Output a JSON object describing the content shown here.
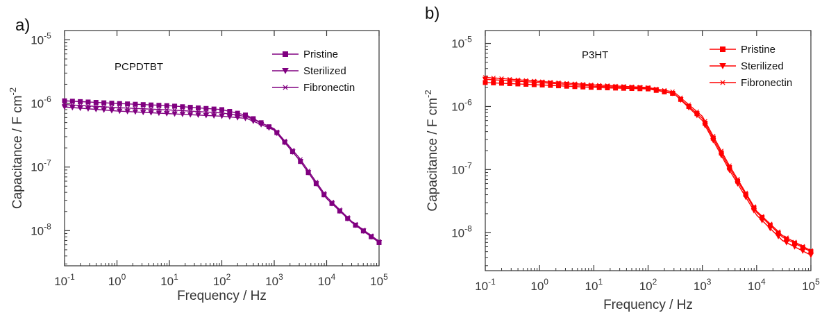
{
  "figure": {
    "panels": [
      "a)",
      "b)"
    ]
  },
  "chart_data": [
    {
      "type": "line",
      "panel_label": "a)",
      "title": "PCPDTBT",
      "xlabel": "Frequency / Hz",
      "ylabel": "Capacitance / F cm⁻²",
      "xscale": "log",
      "yscale": "log",
      "xlim": [
        0.1,
        100000
      ],
      "ylim": [
        2.8e-09,
        1.4e-05
      ],
      "xticks": [
        {
          "base": "10",
          "exp": "-1"
        },
        {
          "base": "10",
          "exp": "0"
        },
        {
          "base": "10",
          "exp": "1"
        },
        {
          "base": "10",
          "exp": "2"
        },
        {
          "base": "10",
          "exp": "3"
        },
        {
          "base": "10",
          "exp": "4"
        },
        {
          "base": "10",
          "exp": "5"
        }
      ],
      "yticks": [
        {
          "base": "10",
          "exp": "-8"
        },
        {
          "base": "10",
          "exp": "-7"
        },
        {
          "base": "10",
          "exp": "-6"
        },
        {
          "base": "10",
          "exp": "-5"
        }
      ],
      "color": "#800080",
      "grid": false,
      "legend_position": "top-right",
      "series": [
        {
          "name": "Pristine",
          "marker": "square",
          "x": [
            0.1,
            1,
            10,
            100,
            300,
            1000,
            3000,
            10000,
            30000,
            100000
          ],
          "y": [
            1.1e-06,
            1e-06,
            9.2e-07,
            8e-07,
            6.5e-07,
            3.9e-07,
            1.3e-07,
            3.2e-08,
            1.35e-08,
            6.5e-09
          ]
        },
        {
          "name": "Sterilized",
          "marker": "triangle-down",
          "x": [
            0.1,
            1,
            10,
            100,
            300,
            1000,
            3000,
            10000,
            30000,
            100000
          ],
          "y": [
            8.8e-07,
            7.6e-07,
            6.9e-07,
            6.3e-07,
            5.8e-07,
            3.8e-07,
            1.3e-07,
            3.2e-08,
            1.35e-08,
            6.5e-09
          ]
        },
        {
          "name": "Fibronectin",
          "marker": "star",
          "x": [
            0.1,
            1,
            10,
            100,
            300,
            1000,
            3000,
            10000,
            30000,
            100000
          ],
          "y": [
            9.6e-07,
            8.6e-07,
            7.9e-07,
            7.1e-07,
            6.2e-07,
            4e-07,
            1.4e-07,
            3.4e-08,
            1.4e-08,
            6.8e-09
          ]
        }
      ]
    },
    {
      "type": "line",
      "panel_label": "b)",
      "title": "P3HT",
      "xlabel": "Frequency / Hz",
      "ylabel": "Capacitance / F cm⁻²",
      "xscale": "log",
      "yscale": "log",
      "xlim": [
        0.1,
        100000
      ],
      "ylim": [
        2.5e-09,
        1.6e-05
      ],
      "xticks": [
        {
          "base": "10",
          "exp": "-1"
        },
        {
          "base": "10",
          "exp": "0"
        },
        {
          "base": "10",
          "exp": "1"
        },
        {
          "base": "10",
          "exp": "2"
        },
        {
          "base": "10",
          "exp": "3"
        },
        {
          "base": "10",
          "exp": "4"
        },
        {
          "base": "10",
          "exp": "5"
        }
      ],
      "yticks": [
        {
          "base": "10",
          "exp": "-8"
        },
        {
          "base": "10",
          "exp": "-7"
        },
        {
          "base": "10",
          "exp": "-6"
        },
        {
          "base": "10",
          "exp": "-5"
        }
      ],
      "color": "#ff0000",
      "grid": false,
      "legend_position": "top-right",
      "series": [
        {
          "name": "Pristine",
          "marker": "square",
          "x": [
            0.1,
            1,
            10,
            100,
            300,
            1000,
            3000,
            10000,
            30000,
            100000
          ],
          "y": [
            2.4e-06,
            2.2e-06,
            2e-06,
            1.9e-06,
            1.6e-06,
            6.5e-07,
            1.15e-07,
            2.1e-08,
            8.5e-09,
            5e-09
          ]
        },
        {
          "name": "Sterilized",
          "marker": "triangle-down",
          "x": [
            0.1,
            1,
            10,
            100,
            300,
            1000,
            3000,
            10000,
            30000,
            100000
          ],
          "y": [
            2.7e-06,
            2.4e-06,
            2.1e-06,
            1.95e-06,
            1.6e-06,
            6e-07,
            1.05e-07,
            1.9e-08,
            7.5e-09,
            4.4e-09
          ]
        },
        {
          "name": "Fibronectin",
          "marker": "star",
          "x": [
            0.1,
            1,
            10,
            100,
            300,
            1000,
            3000,
            10000,
            30000,
            100000
          ],
          "y": [
            2.9e-06,
            2.5e-06,
            2.2e-06,
            2e-06,
            1.7e-06,
            7e-07,
            1.25e-07,
            2.2e-08,
            9e-09,
            5.2e-09
          ]
        }
      ]
    }
  ]
}
